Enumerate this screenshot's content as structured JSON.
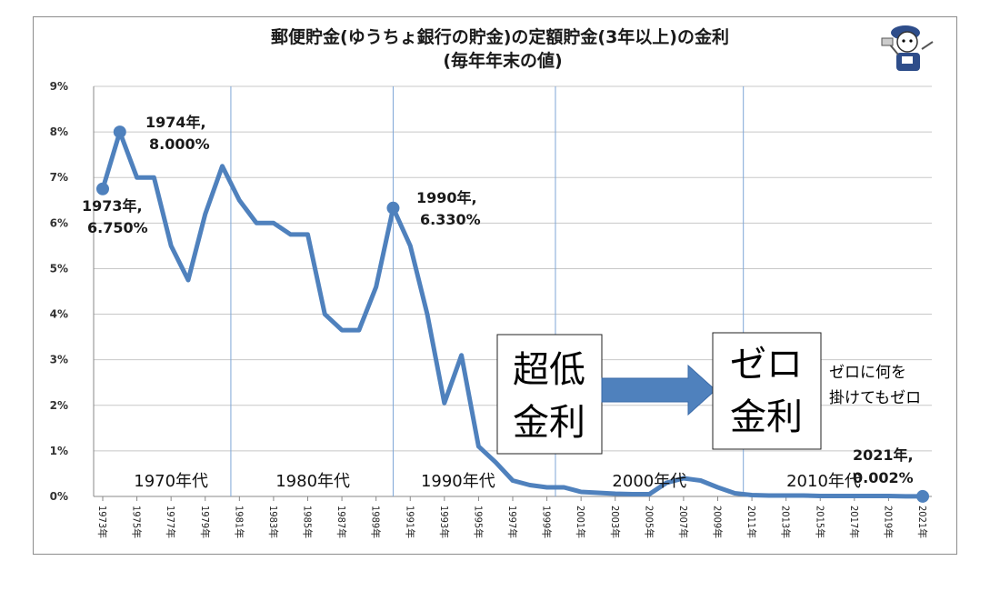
{
  "chart_data": {
    "type": "line",
    "title": "郵便貯金(ゆうちょ銀行の貯金)の定額貯金(3年以上)の金利",
    "subtitle": "(毎年年末の値)",
    "ylim": [
      0,
      9
    ],
    "y_ticks": [
      "0%",
      "1%",
      "2%",
      "3%",
      "4%",
      "5%",
      "6%",
      "7%",
      "8%",
      "9%"
    ],
    "grid": true,
    "x": [
      1973,
      1974,
      1975,
      1976,
      1977,
      1978,
      1979,
      1980,
      1981,
      1982,
      1983,
      1984,
      1985,
      1986,
      1987,
      1988,
      1989,
      1990,
      1991,
      1992,
      1993,
      1994,
      1995,
      1996,
      1997,
      1998,
      1999,
      2000,
      2001,
      2002,
      2003,
      2004,
      2005,
      2006,
      2007,
      2008,
      2009,
      2010,
      2011,
      2012,
      2013,
      2014,
      2015,
      2016,
      2017,
      2018,
      2019,
      2020,
      2021
    ],
    "x_tick_labels": [
      "1973年",
      "1975年",
      "1977年",
      "1979年",
      "1981年",
      "1983年",
      "1985年",
      "1987年",
      "1989年",
      "1991年",
      "1993年",
      "1995年",
      "1997年",
      "1999年",
      "2001年",
      "2003年",
      "2005年",
      "2007年",
      "2009年",
      "2011年",
      "2013年",
      "2015年",
      "2017年",
      "2019年",
      "2021年"
    ],
    "series": [
      {
        "values": [
          6.75,
          8.0,
          7.0,
          7.0,
          5.5,
          4.75,
          6.2,
          7.25,
          6.5,
          6.0,
          6.0,
          5.75,
          5.75,
          4.0,
          3.65,
          3.65,
          4.6,
          6.33,
          5.5,
          4.0,
          2.05,
          3.1,
          1.1,
          0.75,
          0.35,
          0.25,
          0.2,
          0.2,
          0.1,
          0.08,
          0.06,
          0.05,
          0.05,
          0.3,
          0.4,
          0.35,
          0.2,
          0.07,
          0.03,
          0.02,
          0.02,
          0.02,
          0.01,
          0.01,
          0.01,
          0.01,
          0.01,
          0.002,
          0.002
        ],
        "color": "#4f81bd"
      }
    ],
    "decade_dividers": [
      1980.5,
      1990,
      1999.5,
      2010.5
    ],
    "decade_labels": [
      {
        "text": "1970年代",
        "x": 1977
      },
      {
        "text": "1980年代",
        "x": 1985.3
      },
      {
        "text": "1990年代",
        "x": 1993.8
      },
      {
        "text": "2000年代",
        "x": 2005
      },
      {
        "text": "2010年代",
        "x": 2015.2
      }
    ],
    "annotations": [
      {
        "lines": [
          "1973年,",
          "6.750%"
        ]
      },
      {
        "lines": [
          "1974年,",
          "8.000%"
        ]
      },
      {
        "lines": [
          "1990年,",
          "6.330%"
        ]
      },
      {
        "lines": [
          "2021年,",
          "0.002%"
        ]
      }
    ],
    "callouts": {
      "box1": [
        "超低",
        "金利"
      ],
      "box2": [
        "ゼロ",
        "金利"
      ],
      "note": [
        "ゼロに何を",
        "掛けてもゼロ"
      ]
    }
  }
}
